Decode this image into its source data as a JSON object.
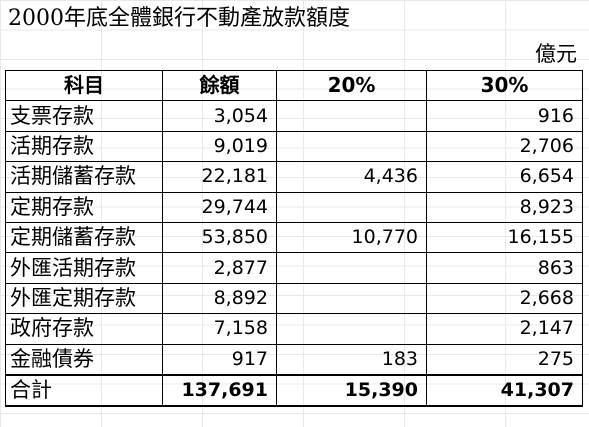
{
  "title": "2000年底全體銀行不動產放款額度",
  "unit": "億元",
  "headers": [
    "科目",
    "餘額",
    "20%",
    "30%"
  ],
  "rows": [
    {
      "item": "支票存款",
      "balance": "3,054",
      "p20": "",
      "p30": "916"
    },
    {
      "item": "活期存款",
      "balance": "9,019",
      "p20": "",
      "p30": "2,706"
    },
    {
      "item": "活期儲蓄存款",
      "balance": "22,181",
      "p20": "4,436",
      "p30": "6,654"
    },
    {
      "item": "定期存款",
      "balance": "29,744",
      "p20": "",
      "p30": "8,923"
    },
    {
      "item": "定期儲蓄存款",
      "balance": "53,850",
      "p20": "10,770",
      "p30": "16,155"
    },
    {
      "item": "外匯活期存款",
      "balance": "2,877",
      "p20": "",
      "p30": "863"
    },
    {
      "item": "外匯定期存款",
      "balance": "8,892",
      "p20": "",
      "p30": "2,668"
    },
    {
      "item": "政府存款",
      "balance": "7,158",
      "p20": "",
      "p30": "2,147"
    },
    {
      "item": "金融債券",
      "balance": "917",
      "p20": "183",
      "p30": "275"
    }
  ],
  "total": {
    "item": "合計",
    "balance": "137,691",
    "p20": "15,390",
    "p30": "41,307"
  }
}
